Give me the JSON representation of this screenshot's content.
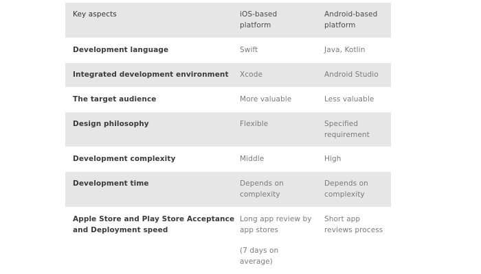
{
  "table": {
    "header": {
      "aspect": "Key aspects",
      "ios": [
        "iOS-based",
        "platform"
      ],
      "android": [
        "Android-based",
        "platform"
      ]
    },
    "rows": [
      {
        "aspect": [
          "Development language"
        ],
        "ios": [
          "Swift"
        ],
        "android": [
          "Java, Kotlin"
        ]
      },
      {
        "aspect": [
          "Integrated development environment"
        ],
        "ios": [
          "Xcode"
        ],
        "android": [
          "Android Studio"
        ]
      },
      {
        "aspect": [
          "The target audience"
        ],
        "ios": [
          "More valuable"
        ],
        "android": [
          "Less valuable"
        ]
      },
      {
        "aspect": [
          "Design philosophy"
        ],
        "ios": [
          "Flexible"
        ],
        "android": [
          "Specified",
          "requirement"
        ]
      },
      {
        "aspect": [
          "Development complexity"
        ],
        "ios": [
          "Middle"
        ],
        "android": [
          "High"
        ]
      },
      {
        "aspect": [
          "Development time"
        ],
        "ios": [
          "Depends on",
          "complexity"
        ],
        "android": [
          "Depends on",
          "complexity"
        ]
      },
      {
        "aspect": [
          "Apple Store and Play Store Acceptance",
          "and Deployment speed"
        ],
        "ios": [
          "Long app review by",
          "app stores"
        ],
        "ios_note": [
          "(7 days on",
          "average)"
        ],
        "android": [
          "Short app",
          "reviews process"
        ]
      }
    ]
  }
}
